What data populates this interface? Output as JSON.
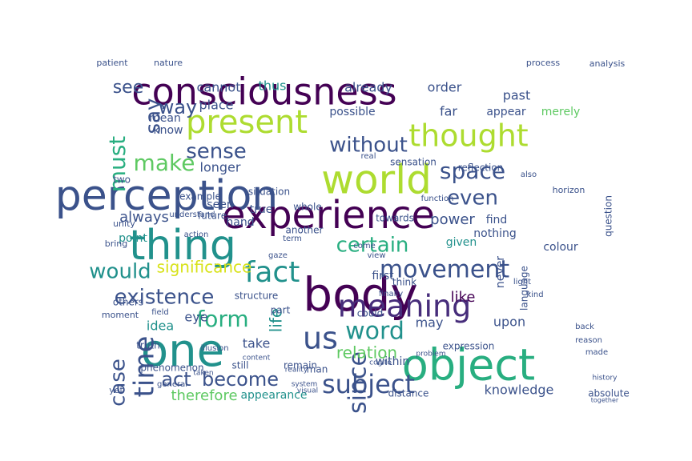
{
  "palette": {
    "dark_purple": "#440154",
    "purple": "#472d7b",
    "blue": "#3b528b",
    "steel": "#2c728e",
    "teal": "#21918c",
    "green_teal": "#28ae80",
    "green": "#5ec962",
    "lime": "#addc30",
    "yellow": "#d8e219"
  },
  "words": [
    {
      "text": "consciousness",
      "color": "dark_purple",
      "weight": 46
    },
    {
      "text": "world",
      "color": "lime",
      "weight": 50
    },
    {
      "text": "perception",
      "color": "blue",
      "weight": 52
    },
    {
      "text": "experience",
      "color": "dark_purple",
      "weight": 48
    },
    {
      "text": "body",
      "color": "dark_purple",
      "weight": 58
    },
    {
      "text": "object",
      "color": "green_teal",
      "weight": 54
    },
    {
      "text": "one",
      "color": "teal",
      "weight": 56
    },
    {
      "text": "thing",
      "color": "teal",
      "weight": 52
    },
    {
      "text": "present",
      "color": "lime",
      "weight": 40
    },
    {
      "text": "thought",
      "color": "lime",
      "weight": 38
    },
    {
      "text": "meaning",
      "color": "purple",
      "weight": 38
    },
    {
      "text": "time",
      "color": "blue",
      "weight": 34
    },
    {
      "text": "fact",
      "color": "teal",
      "weight": 36
    },
    {
      "text": "us",
      "color": "blue",
      "weight": 38
    },
    {
      "text": "subject",
      "color": "blue",
      "weight": 32
    },
    {
      "text": "movement",
      "color": "blue",
      "weight": 30
    },
    {
      "text": "word",
      "color": "teal",
      "weight": 30
    },
    {
      "text": "since",
      "color": "blue",
      "weight": 30
    },
    {
      "text": "must",
      "color": "green_teal",
      "weight": 28
    },
    {
      "text": "make",
      "color": "green",
      "weight": 28
    },
    {
      "text": "sense",
      "color": "blue",
      "weight": 26
    },
    {
      "text": "without",
      "color": "blue",
      "weight": 26
    },
    {
      "text": "space",
      "color": "blue",
      "weight": 28
    },
    {
      "text": "existence",
      "color": "blue",
      "weight": 26
    },
    {
      "text": "form",
      "color": "green_teal",
      "weight": 28
    },
    {
      "text": "would",
      "color": "teal",
      "weight": 26
    },
    {
      "text": "certain",
      "color": "green_teal",
      "weight": 26
    },
    {
      "text": "case",
      "color": "blue",
      "weight": 26
    },
    {
      "text": "say",
      "color": "blue",
      "weight": 26
    },
    {
      "text": "even",
      "color": "blue",
      "weight": 26
    },
    {
      "text": "way",
      "color": "blue",
      "weight": 24
    },
    {
      "text": "see",
      "color": "blue",
      "weight": 22
    },
    {
      "text": "act",
      "color": "blue",
      "weight": 24
    },
    {
      "text": "become",
      "color": "blue",
      "weight": 24
    },
    {
      "text": "significance",
      "color": "yellow",
      "weight": 20
    },
    {
      "text": "life",
      "color": "teal",
      "weight": 20
    },
    {
      "text": "relation",
      "color": "green",
      "weight": 20
    },
    {
      "text": "therefore",
      "color": "green",
      "weight": 18
    },
    {
      "text": "always",
      "color": "blue",
      "weight": 18
    },
    {
      "text": "power",
      "color": "blue",
      "weight": 18
    },
    {
      "text": "idea",
      "color": "teal",
      "weight": 16
    },
    {
      "text": "may",
      "color": "blue",
      "weight": 16
    },
    {
      "text": "like",
      "color": "dark_purple",
      "weight": 18
    },
    {
      "text": "upon",
      "color": "blue",
      "weight": 16
    },
    {
      "text": "knowledge",
      "color": "blue",
      "weight": 16
    },
    {
      "text": "take",
      "color": "blue",
      "weight": 16
    },
    {
      "text": "within",
      "color": "blue",
      "weight": 14
    },
    {
      "text": "appearance",
      "color": "teal",
      "weight": 14
    },
    {
      "text": "eye",
      "color": "blue",
      "weight": 16
    },
    {
      "text": "longer",
      "color": "blue",
      "weight": 16
    },
    {
      "text": "place",
      "color": "blue",
      "weight": 16
    },
    {
      "text": "cannot",
      "color": "blue",
      "weight": 16
    },
    {
      "text": "thus",
      "color": "teal",
      "weight": 16
    },
    {
      "text": "already",
      "color": "blue",
      "weight": 16
    },
    {
      "text": "order",
      "color": "blue",
      "weight": 16
    },
    {
      "text": "past",
      "color": "blue",
      "weight": 16
    },
    {
      "text": "possible",
      "color": "blue",
      "weight": 14
    },
    {
      "text": "far",
      "color": "blue",
      "weight": 16
    },
    {
      "text": "appear",
      "color": "blue",
      "weight": 14
    },
    {
      "text": "merely",
      "color": "green",
      "weight": 14
    },
    {
      "text": "know",
      "color": "blue",
      "weight": 14
    },
    {
      "text": "mean",
      "color": "blue",
      "weight": 14
    },
    {
      "text": "true",
      "color": "blue",
      "weight": 14
    },
    {
      "text": "seen",
      "color": "blue",
      "weight": 14
    },
    {
      "text": "hand",
      "color": "blue",
      "weight": 14
    },
    {
      "text": "point",
      "color": "teal",
      "weight": 14
    },
    {
      "text": "given",
      "color": "teal",
      "weight": 14
    },
    {
      "text": "nothing",
      "color": "blue",
      "weight": 14
    },
    {
      "text": "find",
      "color": "blue",
      "weight": 14
    },
    {
      "text": "colour",
      "color": "blue",
      "weight": 14
    },
    {
      "text": "first",
      "color": "blue",
      "weight": 14
    },
    {
      "text": "never",
      "color": "blue",
      "weight": 14
    },
    {
      "text": "structure",
      "color": "blue",
      "weight": 12
    },
    {
      "text": "part",
      "color": "blue",
      "weight": 12
    },
    {
      "text": "could",
      "color": "blue",
      "weight": 12
    },
    {
      "text": "remain",
      "color": "blue",
      "weight": 12
    },
    {
      "text": "phenomenon",
      "color": "blue",
      "weight": 12
    },
    {
      "text": "truth",
      "color": "blue",
      "weight": 12
    },
    {
      "text": "others",
      "color": "blue",
      "weight": 12
    },
    {
      "text": "two",
      "color": "blue",
      "weight": 12
    },
    {
      "text": "towards",
      "color": "blue",
      "weight": 12
    },
    {
      "text": "another",
      "color": "blue",
      "weight": 12
    },
    {
      "text": "whole",
      "color": "blue",
      "weight": 12
    },
    {
      "text": "situation",
      "color": "blue",
      "weight": 12
    },
    {
      "text": "sensation",
      "color": "blue",
      "weight": 12
    },
    {
      "text": "reflection",
      "color": "blue",
      "weight": 12
    },
    {
      "text": "future",
      "color": "blue",
      "weight": 12
    },
    {
      "text": "example",
      "color": "blue",
      "weight": 12
    },
    {
      "text": "still",
      "color": "blue",
      "weight": 12
    },
    {
      "text": "man",
      "color": "blue",
      "weight": 12
    },
    {
      "text": "distance",
      "color": "blue",
      "weight": 12
    },
    {
      "text": "absolute",
      "color": "blue",
      "weight": 12
    },
    {
      "text": "expression",
      "color": "blue",
      "weight": 12
    },
    {
      "text": "think",
      "color": "blue",
      "weight": 12
    },
    {
      "text": "language",
      "color": "blue",
      "weight": 12
    },
    {
      "text": "question",
      "color": "blue",
      "weight": 12
    },
    {
      "text": "horizon",
      "color": "blue",
      "weight": 11
    },
    {
      "text": "patient",
      "color": "blue",
      "weight": 11
    },
    {
      "text": "nature",
      "color": "blue",
      "weight": 11
    },
    {
      "text": "process",
      "color": "blue",
      "weight": 11
    },
    {
      "text": "analysis",
      "color": "blue",
      "weight": 11
    },
    {
      "text": "unity",
      "color": "blue",
      "weight": 11
    },
    {
      "text": "bring",
      "color": "blue",
      "weight": 11
    },
    {
      "text": "understand",
      "color": "blue",
      "weight": 10
    },
    {
      "text": "moment",
      "color": "blue",
      "weight": 11
    },
    {
      "text": "general",
      "color": "blue",
      "weight": 10
    },
    {
      "text": "yet",
      "color": "blue",
      "weight": 11
    },
    {
      "text": "illusion",
      "color": "blue",
      "weight": 10
    },
    {
      "text": "finally",
      "color": "blue",
      "weight": 10
    },
    {
      "text": "kind",
      "color": "blue",
      "weight": 10
    },
    {
      "text": "light",
      "color": "blue",
      "weight": 10
    },
    {
      "text": "field",
      "color": "blue",
      "weight": 10
    },
    {
      "text": "action",
      "color": "blue",
      "weight": 10
    },
    {
      "text": "come",
      "color": "blue",
      "weight": 10
    },
    {
      "text": "view",
      "color": "blue",
      "weight": 10
    },
    {
      "text": "real",
      "color": "blue",
      "weight": 10
    },
    {
      "text": "function",
      "color": "blue",
      "weight": 10
    },
    {
      "text": "also",
      "color": "blue",
      "weight": 10
    },
    {
      "text": "back",
      "color": "blue",
      "weight": 10
    },
    {
      "text": "reason",
      "color": "blue",
      "weight": 10
    },
    {
      "text": "made",
      "color": "blue",
      "weight": 10
    },
    {
      "text": "system",
      "color": "blue",
      "weight": 9
    },
    {
      "text": "reality",
      "color": "blue",
      "weight": 9
    },
    {
      "text": "problem",
      "color": "blue",
      "weight": 9
    },
    {
      "text": "content",
      "color": "blue",
      "weight": 9
    },
    {
      "text": "taken",
      "color": "blue",
      "weight": 9
    },
    {
      "text": "gaze",
      "color": "blue",
      "weight": 10
    },
    {
      "text": "term",
      "color": "blue",
      "weight": 10
    },
    {
      "text": "cogito",
      "color": "blue",
      "weight": 9
    },
    {
      "text": "visual",
      "color": "blue",
      "weight": 9
    },
    {
      "text": "history",
      "color": "blue",
      "weight": 9
    },
    {
      "text": "together",
      "color": "blue",
      "weight": 8
    }
  ]
}
